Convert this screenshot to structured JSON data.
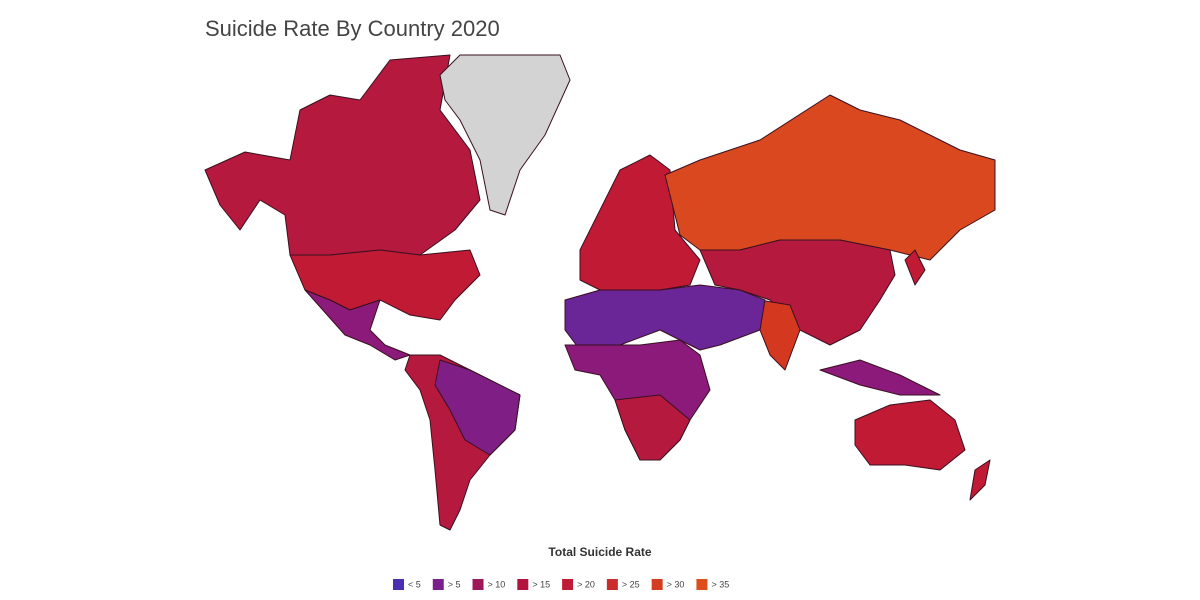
{
  "title": "Suicide Rate By Country 2020",
  "legend": {
    "title": "Total Suicide Rate",
    "items": [
      {
        "label": "< 5",
        "color": "#4b2fb0"
      },
      {
        "label": "> 5",
        "color": "#7b1f8c"
      },
      {
        "label": "> 10",
        "color": "#9c1858"
      },
      {
        "label": "> 15",
        "color": "#b3143f"
      },
      {
        "label": "> 20",
        "color": "#c01b36"
      },
      {
        "label": "> 25",
        "color": "#cb2b2b"
      },
      {
        "label": "> 30",
        "color": "#d43d22"
      },
      {
        "label": "> 35",
        "color": "#dc4f1c"
      }
    ]
  }
}
